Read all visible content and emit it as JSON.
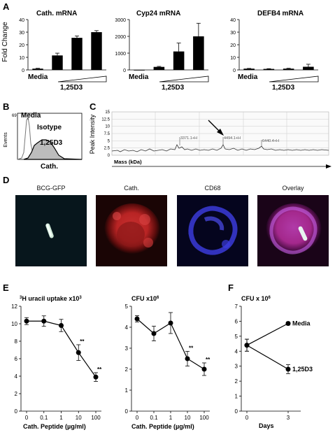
{
  "figure": {
    "panel_letters": [
      "A",
      "B",
      "C",
      "D",
      "E",
      "F"
    ]
  },
  "panelA": {
    "x_media": "Media",
    "x_treatment": "1,25D3",
    "ylabel": "Fold Change",
    "charts": [
      {
        "title": "Cath. mRNA",
        "yticks": [
          "0",
          "10",
          "20",
          "30",
          "40"
        ],
        "ylim": [
          0,
          40
        ]
      },
      {
        "title": "Cyp24 mRNA",
        "yticks": [
          "0",
          "1000",
          "2000",
          "3000"
        ],
        "ylim": [
          0,
          3000
        ]
      },
      {
        "title": "DEFB4 mRNA",
        "yticks": [
          "0",
          "10",
          "20",
          "30",
          "40"
        ],
        "ylim": [
          0,
          40
        ]
      }
    ]
  },
  "panelB": {
    "ylabel": "Events",
    "xlabel": "Cath.",
    "ytick": "69",
    "label_media": "Media",
    "label_isotype": "Isotype",
    "label_treatment": "1,25D3"
  },
  "panelC": {
    "ylabel": "Peak Intensity",
    "xlabel": "Mass (kDa)",
    "yticks": [
      "0",
      "2.5",
      "5",
      "7.5",
      "10",
      "12.5",
      "15"
    ],
    "peaks": [
      "3371.1+H",
      "4494.1+H",
      "6440.4+H"
    ]
  },
  "panelD": {
    "labels": [
      "BCG-GFP",
      "Cath.",
      "CD68",
      "Overlay"
    ]
  },
  "panelE": {
    "xlabel": "Cath. Peptide  (µg/ml)",
    "charts": [
      {
        "title": "3H uracil uptake x10³",
        "title_sup": "3",
        "title_main": "H uracil uptake x10",
        "title_exp": "3",
        "yticks": [
          "0",
          "2",
          "4",
          "6",
          "8",
          "10",
          "12"
        ],
        "xticks": [
          "0",
          "0.1",
          "1",
          "10",
          "100"
        ]
      },
      {
        "title_main": "CFU x10",
        "title_exp": "6",
        "yticks": [
          "0",
          "1",
          "2",
          "3",
          "4",
          "5"
        ],
        "xticks": [
          "0",
          "0.1",
          "1",
          "10",
          "100"
        ]
      }
    ],
    "sig_label": "**"
  },
  "panelF": {
    "title_main": "CFU x 10",
    "title_exp": "6",
    "xlabel": "Days",
    "xticks": [
      "0",
      "3"
    ],
    "yticks": [
      "0",
      "1",
      "2",
      "3",
      "4",
      "5",
      "6",
      "7"
    ],
    "series_media": "Media",
    "series_treatment": "1,25D3"
  },
  "chart_data": [
    {
      "type": "bar",
      "title": "Cath. mRNA",
      "ylabel": "Fold Change",
      "categories": [
        "Media",
        "1,25D3 low",
        "1,25D3 mid",
        "1,25D3 high"
      ],
      "values": [
        1,
        11.5,
        25.5,
        30
      ],
      "errors": [
        0.3,
        1.8,
        1.5,
        1.2
      ],
      "ylim": [
        0,
        40
      ]
    },
    {
      "type": "bar",
      "title": "Cyp24 mRNA",
      "categories": [
        "Media",
        "1,25D3 low",
        "1,25D3 mid",
        "1,25D3 high"
      ],
      "values": [
        0,
        180,
        1100,
        2000
      ],
      "errors": [
        0,
        30,
        500,
        780
      ],
      "ylim": [
        0,
        3000
      ]
    },
    {
      "type": "bar",
      "title": "DEFB4 mRNA",
      "categories": [
        "Media",
        "1,25D3 low",
        "1,25D3 mid",
        "1,25D3 high"
      ],
      "values": [
        1,
        0.8,
        1,
        2.5
      ],
      "errors": [
        0.2,
        0.2,
        0.3,
        2
      ],
      "ylim": [
        0,
        40
      ]
    },
    {
      "type": "line",
      "title": "3H uracil uptake x10³",
      "xlabel": "Cath. Peptide  (µg/ml)",
      "x": [
        "0",
        "0.1",
        "1",
        "10",
        "100"
      ],
      "values": [
        10.3,
        10.3,
        9.8,
        6.7,
        3.9
      ],
      "errors": [
        0.4,
        0.6,
        0.7,
        0.9,
        0.5
      ],
      "significance": [
        "",
        "",
        "",
        "**",
        "**"
      ],
      "ylim": [
        0,
        12
      ]
    },
    {
      "type": "line",
      "title": "CFU x10⁶",
      "xlabel": "Cath. Peptide  (µg/ml)",
      "x": [
        "0",
        "0.1",
        "1",
        "10",
        "100"
      ],
      "values": [
        4.4,
        3.7,
        4.2,
        2.5,
        2.0
      ],
      "errors": [
        0.15,
        0.35,
        0.5,
        0.35,
        0.3
      ],
      "significance": [
        "",
        "",
        "",
        "**",
        "**"
      ],
      "ylim": [
        0,
        5
      ]
    },
    {
      "type": "line",
      "title": "CFU x 10⁶",
      "xlabel": "Days",
      "x": [
        "0",
        "3"
      ],
      "series": [
        {
          "name": "Media",
          "values": [
            4.4,
            5.85
          ],
          "errors": [
            0.4,
            0.1
          ]
        },
        {
          "name": "1,25D3",
          "values": [
            4.4,
            2.8
          ],
          "errors": [
            0.4,
            0.3
          ]
        }
      ],
      "ylim": [
        0,
        7
      ]
    }
  ]
}
